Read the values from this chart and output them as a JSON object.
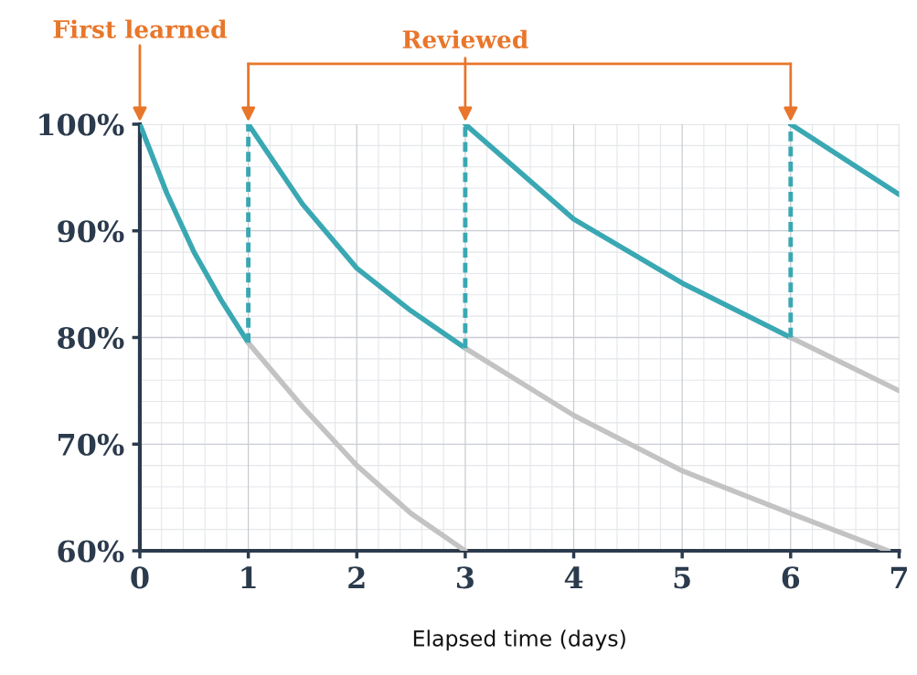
{
  "chart_data": {
    "type": "line",
    "xlabel": "Elapsed time (days)",
    "series": [
      {
        "color": "#3aa8b3",
        "x": [
          0,
          0.25,
          0.5,
          0.75,
          1
        ],
        "values": [
          100,
          93.5,
          88,
          83.5,
          79.5
        ]
      },
      {
        "color": "#c3c3c3",
        "x": [
          1,
          1.5,
          2,
          2.5,
          3
        ],
        "values": [
          79.5,
          73.5,
          68,
          63.5,
          60
        ]
      },
      {
        "color": "#3aa8b3",
        "x": [
          1,
          1.5,
          2,
          2.5,
          3
        ],
        "values": [
          100,
          92.5,
          86.5,
          82.5,
          79
        ]
      },
      {
        "color": "#c3c3c3",
        "x": [
          3,
          4,
          5,
          6,
          6.9
        ],
        "values": [
          79,
          72.7,
          67.5,
          63.5,
          60
        ]
      },
      {
        "color": "#3aa8b3",
        "x": [
          3,
          4,
          5,
          6
        ],
        "values": [
          100,
          91.1,
          85.1,
          80
        ]
      },
      {
        "color": "#c3c3c3",
        "x": [
          6,
          7
        ],
        "values": [
          80,
          75
        ]
      },
      {
        "color": "#3aa8b3",
        "x": [
          6,
          7
        ],
        "values": [
          100,
          93.4
        ]
      },
      {
        "color": "#3aa8b3",
        "line_style": "dashed",
        "x": [
          1,
          1
        ],
        "values": [
          79.5,
          100
        ]
      },
      {
        "color": "#3aa8b3",
        "line_style": "dashed",
        "x": [
          3,
          3
        ],
        "values": [
          79,
          100
        ]
      },
      {
        "color": "#3aa8b3",
        "line_style": "dashed",
        "x": [
          6,
          6
        ],
        "values": [
          80,
          100
        ]
      }
    ],
    "annotations": [
      {
        "text": "First learned",
        "x": 0,
        "y": 100
      },
      {
        "text": "Reviewed",
        "x": 3,
        "y": 100
      }
    ],
    "xlim": [
      0,
      7
    ],
    "xticks": [
      0,
      1,
      2,
      3,
      4,
      5,
      6,
      7
    ],
    "ylim": [
      60,
      100
    ],
    "yticks": [
      {
        "value": 60,
        "label": "60%"
      },
      {
        "value": 70,
        "label": "70%"
      },
      {
        "value": 80,
        "label": "80%"
      },
      {
        "value": 90,
        "label": "90%"
      },
      {
        "value": 100,
        "label": "100%"
      }
    ],
    "grid": true,
    "line_style": "solid",
    "marker": "none"
  }
}
